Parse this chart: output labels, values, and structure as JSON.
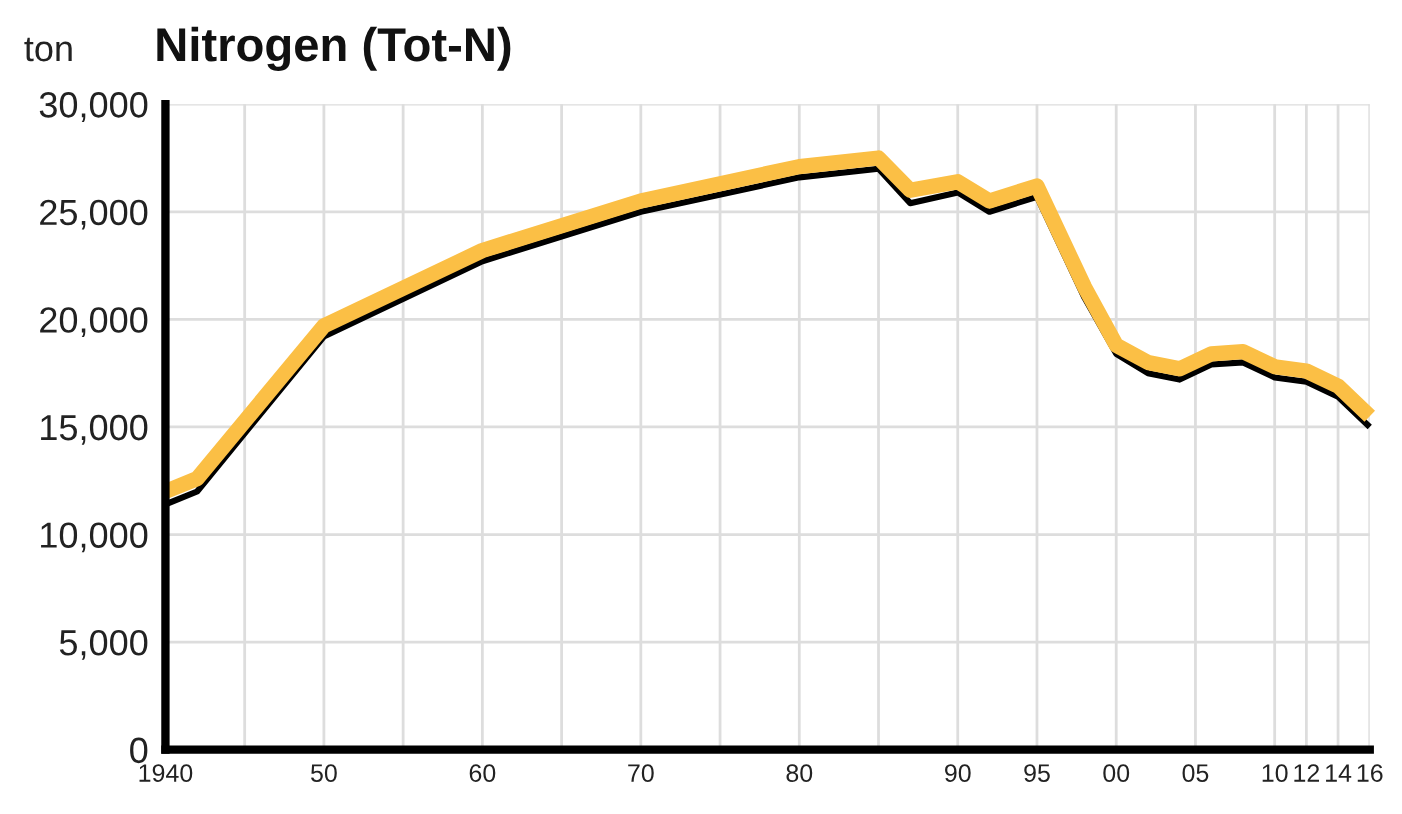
{
  "chart_data": {
    "type": "line",
    "title": "Nitrogen (Tot-N)",
    "ylabel": "ton",
    "x": [
      1940,
      1942,
      1950,
      1960,
      1970,
      1980,
      1985,
      1987,
      1990,
      1992,
      1995,
      1998,
      2000,
      2002,
      2004,
      2006,
      2008,
      2010,
      2012,
      2014,
      2016
    ],
    "series": [
      {
        "color": "#000000",
        "values": [
          11400,
          12000,
          19200,
          22700,
          25000,
          26600,
          27000,
          25400,
          25900,
          25000,
          25700,
          21000,
          18400,
          17500,
          17200,
          17900,
          18000,
          17300,
          17100,
          16400,
          15000
        ]
      },
      {
        "color": "#fbbf45",
        "values": [
          12000,
          12600,
          19700,
          23200,
          25500,
          27100,
          27500,
          26000,
          26400,
          25500,
          26200,
          21500,
          18800,
          18000,
          17700,
          18400,
          18500,
          17800,
          17600,
          16900,
          15500
        ]
      }
    ],
    "xlim": [
      1940,
      2016
    ],
    "xticks": [
      {
        "value": 1940,
        "label": "1940"
      },
      {
        "value": 1945,
        "label": null
      },
      {
        "value": 1950,
        "label": "50"
      },
      {
        "value": 1955,
        "label": null
      },
      {
        "value": 1960,
        "label": "60"
      },
      {
        "value": 1965,
        "label": null
      },
      {
        "value": 1970,
        "label": "70"
      },
      {
        "value": 1975,
        "label": null
      },
      {
        "value": 1980,
        "label": "80"
      },
      {
        "value": 1985,
        "label": null
      },
      {
        "value": 1990,
        "label": "90"
      },
      {
        "value": 1995,
        "label": "95"
      },
      {
        "value": 2000,
        "label": "00"
      },
      {
        "value": 2005,
        "label": "05"
      },
      {
        "value": 2010,
        "label": "10"
      },
      {
        "value": 2012,
        "label": "12"
      },
      {
        "value": 2014,
        "label": "14"
      },
      {
        "value": 2016,
        "label": "16"
      }
    ],
    "ylim": [
      0,
      30000
    ],
    "yticks": [
      0,
      {
        "value": 5000,
        "label": "5,000"
      },
      {
        "value": 10000,
        "label": "10,000"
      },
      {
        "value": 15000,
        "label": "15,000"
      },
      {
        "value": 20000,
        "label": "20,000"
      },
      {
        "value": 25000,
        "label": "25,000"
      },
      {
        "value": 30000,
        "label": "30,000"
      }
    ],
    "grid": true,
    "legend": false,
    "marker": "none",
    "line_style": "solid"
  }
}
